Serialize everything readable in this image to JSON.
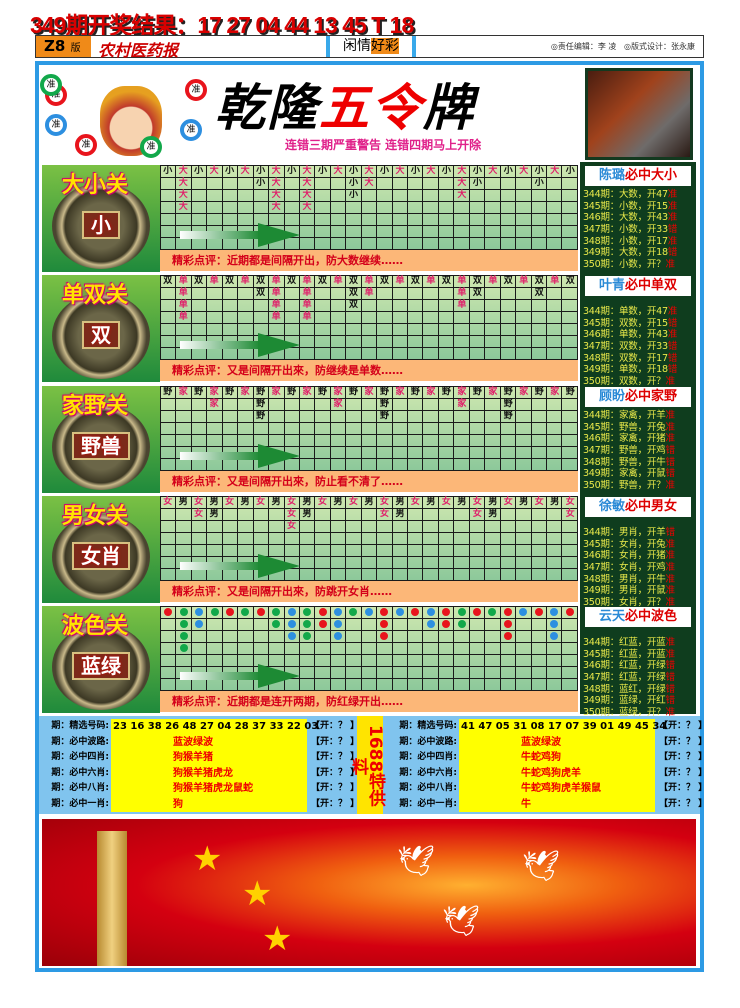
{
  "result_line": "349期开奖结果：17 27 04 44 13 45 T 18",
  "masthead": {
    "version": "Z8",
    "version_suffix": "版",
    "paper": "农村医药报",
    "leisure_a": "闲情",
    "leisure_b": "好彩",
    "editor": "◎责任编辑：李 凌",
    "designer": "◎版式设计：张永康"
  },
  "header": {
    "title_a": "乾隆",
    "title_b": "五令",
    "title_c": "牌",
    "warning": "连错三期严重警告 连错四期马上开除",
    "ball_label": "准"
  },
  "colors": {
    "red": "#e8141c",
    "green": "#12a84a",
    "blue": "#2d8fe0"
  },
  "sections": [
    {
      "title": "大小关",
      "coin": "小",
      "comment": "精彩点评：近期都是间隔开出，防大数继续……",
      "columns": [
        "小",
        "大大大大",
        "小",
        "大",
        "小",
        "大",
        "小小",
        "大大大大",
        "小",
        "大大大大",
        "小",
        "大",
        "小小小",
        "大大",
        "小",
        "大",
        "小",
        "大",
        "小",
        "大大大",
        "小小",
        "大",
        "小",
        "大",
        "小小",
        "大",
        "小"
      ]
    },
    {
      "title": "单双关",
      "coin": "双",
      "comment": "精彩点评：又是间隔开出來，防继续是单数……",
      "columns": [
        "双",
        "单单单单",
        "双",
        "单",
        "双",
        "单",
        "双双",
        "单单单单",
        "双",
        "单单单单",
        "双",
        "单",
        "双双双",
        "单单",
        "双",
        "单",
        "双",
        "单",
        "双",
        "单单单",
        "双双",
        "单",
        "双",
        "单",
        "双双",
        "单",
        "双"
      ]
    },
    {
      "title": "家野关",
      "coin": "野兽",
      "comment": "精彩点评：又是间隔开出來，防止看不清了……",
      "columns": [
        "野",
        "家",
        "野",
        "家家",
        "野",
        "家",
        "野野野",
        "家",
        "野",
        "家",
        "野",
        "家家",
        "野",
        "家",
        "野野野",
        "家",
        "野",
        "家",
        "野",
        "家家",
        "野",
        "家",
        "野野野",
        "家",
        "野",
        "家",
        "野"
      ]
    },
    {
      "title": "男女关",
      "coin": "女肖",
      "comment": "精彩点评：又是间隔开出來，防跳开女肖……",
      "columns": [
        "女",
        "男",
        "女女",
        "男男",
        "女",
        "男",
        "女",
        "男",
        "女女女",
        "男男",
        "女",
        "男",
        "女",
        "男",
        "女女",
        "男男",
        "女",
        "男",
        "女",
        "男",
        "女女",
        "男男",
        "女",
        "男",
        "女",
        "男",
        "女女"
      ]
    },
    {
      "title": "波色关",
      "coin": "蓝绿",
      "comment": "精彩点评：近期都是连开两期，防红绿开出……",
      "columns": [
        "R",
        "GGGG",
        "BB",
        "G",
        "R",
        "G",
        "R",
        "GG",
        "BBB",
        "GGG",
        "RR",
        "BBB",
        "G",
        "B",
        "RRR",
        "B",
        "R",
        "BB",
        "RR",
        "GG",
        "R",
        "G",
        "RRR",
        "B",
        "R",
        "BBB",
        "R"
      ]
    }
  ],
  "predictors": [
    {
      "name": "陈璐",
      "topic": "必中大小",
      "rows": [
        [
          "344期：大数，开47",
          "准"
        ],
        [
          "345期：小数，开15",
          "准"
        ],
        [
          "346期：大数，开43",
          "准"
        ],
        [
          "347期：小数，开33",
          "错"
        ],
        [
          "348期：小数，开17",
          "准"
        ],
        [
          "349期：大数，开18",
          "错"
        ],
        [
          "350期：小数，开？",
          "准"
        ]
      ]
    },
    {
      "name": "叶青",
      "topic": "必中单双",
      "rows": [
        [
          "344期：单数，开47",
          "准"
        ],
        [
          "345期：双数，开15",
          "错"
        ],
        [
          "346期：单数，开43",
          "准"
        ],
        [
          "347期：双数，开33",
          "错"
        ],
        [
          "348期：双数，开17",
          "错"
        ],
        [
          "349期：单数，开18",
          "错"
        ],
        [
          "350期：双数，开？",
          "准"
        ]
      ]
    },
    {
      "name": "顾盼",
      "topic": "必中家野",
      "rows": [
        [
          "344期：家禽，开羊",
          "准"
        ],
        [
          "345期：野兽，开兔",
          "准"
        ],
        [
          "346期：家禽，开猪",
          "准"
        ],
        [
          "347期：野兽，开鸡",
          "错"
        ],
        [
          "348期：野兽，开牛",
          "错"
        ],
        [
          "349期：家禽，开鼠",
          "错"
        ],
        [
          "350期：野兽，开？",
          "准"
        ]
      ]
    },
    {
      "name": "徐敏",
      "topic": "必中男女",
      "rows": [
        [
          "344期：男肖，开羊",
          "错"
        ],
        [
          "345期：女肖，开兔",
          "准"
        ],
        [
          "346期：女肖，开猪",
          "准"
        ],
        [
          "347期：女肖，开鸡",
          "准"
        ],
        [
          "348期：男肖，开牛",
          "准"
        ],
        [
          "349期：男肖，开鼠",
          "准"
        ],
        [
          "350期：女肖，开？",
          "准"
        ]
      ]
    },
    {
      "name": "云天",
      "topic": "必中波色",
      "rows": [
        [
          "344期：红蓝，开蓝",
          "准"
        ],
        [
          "345期：红蓝，开蓝",
          "准"
        ],
        [
          "346期：红蓝，开绿",
          "错"
        ],
        [
          "347期：红蓝，开绿",
          "错"
        ],
        [
          "348期：蓝红，开绿",
          "错"
        ],
        [
          "349期：蓝绿，开红",
          "错"
        ],
        [
          "350期：蓝绿，开？",
          "准"
        ]
      ]
    }
  ],
  "special": "1688特供料",
  "tables": [
    {
      "rows": [
        {
          "label": "期：精选号码:",
          "value": "23 16 38 26 48 27 04 28 37 33 22 03",
          "open": "【开：？ 】"
        },
        {
          "label": "期：必中波路:",
          "value": "蓝波绿波",
          "open": "【开：？ 】"
        },
        {
          "label": "期：必中四肖:",
          "value": "狗猴羊猪",
          "open": "【开：？ 】"
        },
        {
          "label": "期：必中六肖:",
          "value": "狗猴羊猪虎龙",
          "open": "【开：？ 】"
        },
        {
          "label": "期：必中八肖:",
          "value": "狗猴羊猪虎龙鼠蛇",
          "open": "【开：？ 】"
        },
        {
          "label": "期：必中一肖:",
          "value": "狗",
          "open": "【开：？ 】"
        }
      ]
    },
    {
      "rows": [
        {
          "label": "期：精选号码:",
          "value": "41 47 05 31 08 17 07 39 01 49 45 34",
          "open": "【开：？ 】"
        },
        {
          "label": "期：必中波路:",
          "value": "蓝波绿波",
          "open": "【开：？ 】"
        },
        {
          "label": "期：必中四肖:",
          "value": "牛蛇鸡狗",
          "open": "【开：？ 】"
        },
        {
          "label": "期：必中六肖:",
          "value": "牛蛇鸡狗虎羊",
          "open": "【开：？ 】"
        },
        {
          "label": "期：必中八肖:",
          "value": "牛蛇鸡狗虎羊猴鼠",
          "open": "【开：？ 】"
        },
        {
          "label": "期：必中一肖:",
          "value": "牛",
          "open": "【开：？ 】"
        }
      ]
    }
  ]
}
